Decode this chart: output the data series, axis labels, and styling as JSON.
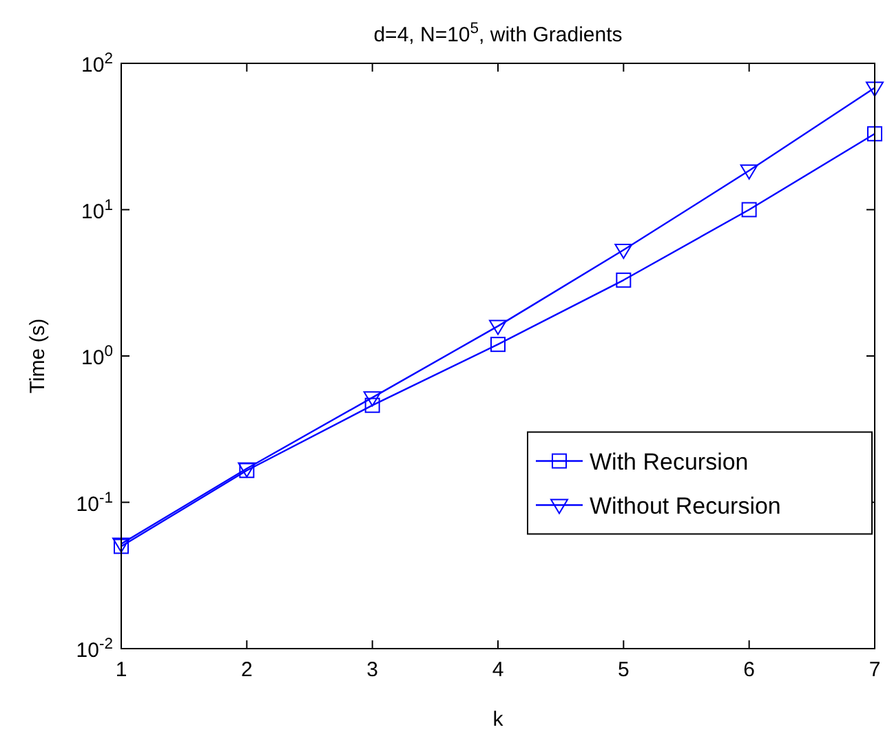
{
  "chart_data": {
    "type": "line",
    "title": "d=4, N=10$^{5}$, with Gradients",
    "xlabel": "k",
    "ylabel": "Time (s)",
    "x": [
      1,
      2,
      3,
      4,
      5,
      6,
      7
    ],
    "series": [
      {
        "name": "With Recursion",
        "color": "#0000ff",
        "marker": "square",
        "values": [
          0.05,
          0.165,
          0.46,
          1.2,
          3.3,
          10,
          33
        ]
      },
      {
        "name": "Without Recursion",
        "color": "#0000ff",
        "marker": "triangle",
        "values": [
          0.052,
          0.17,
          0.52,
          1.6,
          5.3,
          18.5,
          68
        ]
      }
    ],
    "xlim": [
      1,
      7
    ],
    "xticks": [
      1,
      2,
      3,
      4,
      5,
      6,
      7
    ],
    "ylim": [
      0.01,
      100
    ],
    "yticks": [
      {
        "value": 0.01,
        "label": "10$^{-2}$"
      },
      {
        "value": 0.1,
        "label": "10$^{-1}$"
      },
      {
        "value": 1,
        "label": "10$^{0}$"
      },
      {
        "value": 10,
        "label": "10$^{1}$"
      },
      {
        "value": 100,
        "label": "10$^{2}$"
      }
    ],
    "log": true,
    "grid": false,
    "legend": "right",
    "line_style": "solid"
  }
}
